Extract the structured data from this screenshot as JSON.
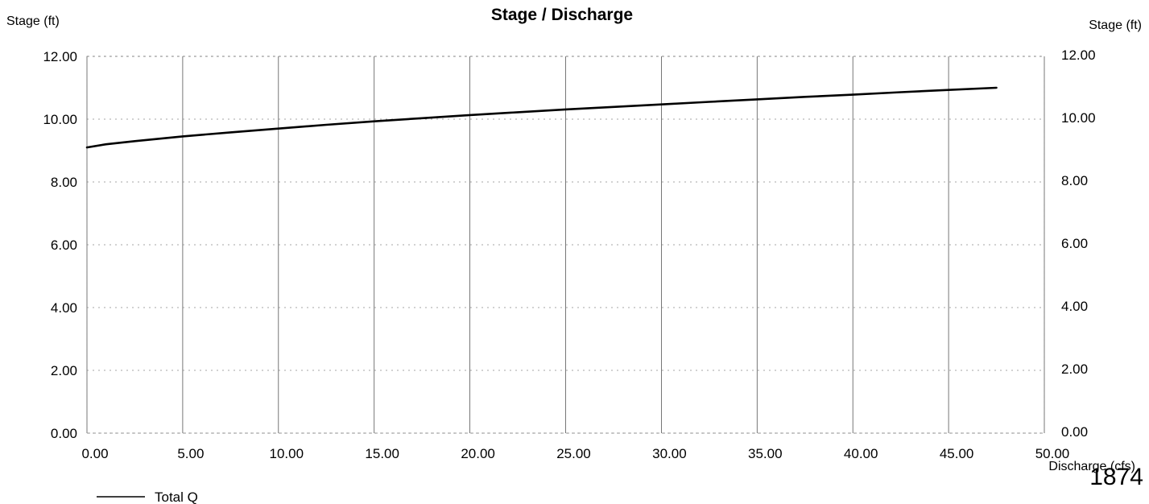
{
  "chart_data": {
    "type": "line",
    "title": "Stage / Discharge",
    "ylabel_left": "Stage (ft)",
    "ylabel_right": "Stage (ft)",
    "xlabel": "Discharge (cfs)",
    "xlim": [
      0,
      50
    ],
    "ylim": [
      0,
      12
    ],
    "x_ticks": [
      "0.00",
      "5.00",
      "10.00",
      "15.00",
      "20.00",
      "25.00",
      "30.00",
      "35.00",
      "40.00",
      "45.00",
      "50.00"
    ],
    "y_ticks": [
      "0.00",
      "2.00",
      "4.00",
      "6.00",
      "8.00",
      "10.00",
      "12.00"
    ],
    "grid": true,
    "legend_position": "bottom-left",
    "series": [
      {
        "name": "Total Q",
        "color": "#000000",
        "x": [
          0,
          1,
          2.5,
          5,
          7.5,
          10,
          12.5,
          15,
          17.5,
          20,
          22.5,
          25,
          27.5,
          30,
          32.5,
          35,
          37.5,
          40,
          42.5,
          45,
          47.5
        ],
        "y": [
          9.1,
          9.2,
          9.3,
          9.45,
          9.58,
          9.7,
          9.82,
          9.93,
          10.03,
          10.13,
          10.22,
          10.31,
          10.39,
          10.47,
          10.55,
          10.63,
          10.71,
          10.78,
          10.86,
          10.93,
          11.0
        ]
      }
    ]
  },
  "page_number": "1874"
}
